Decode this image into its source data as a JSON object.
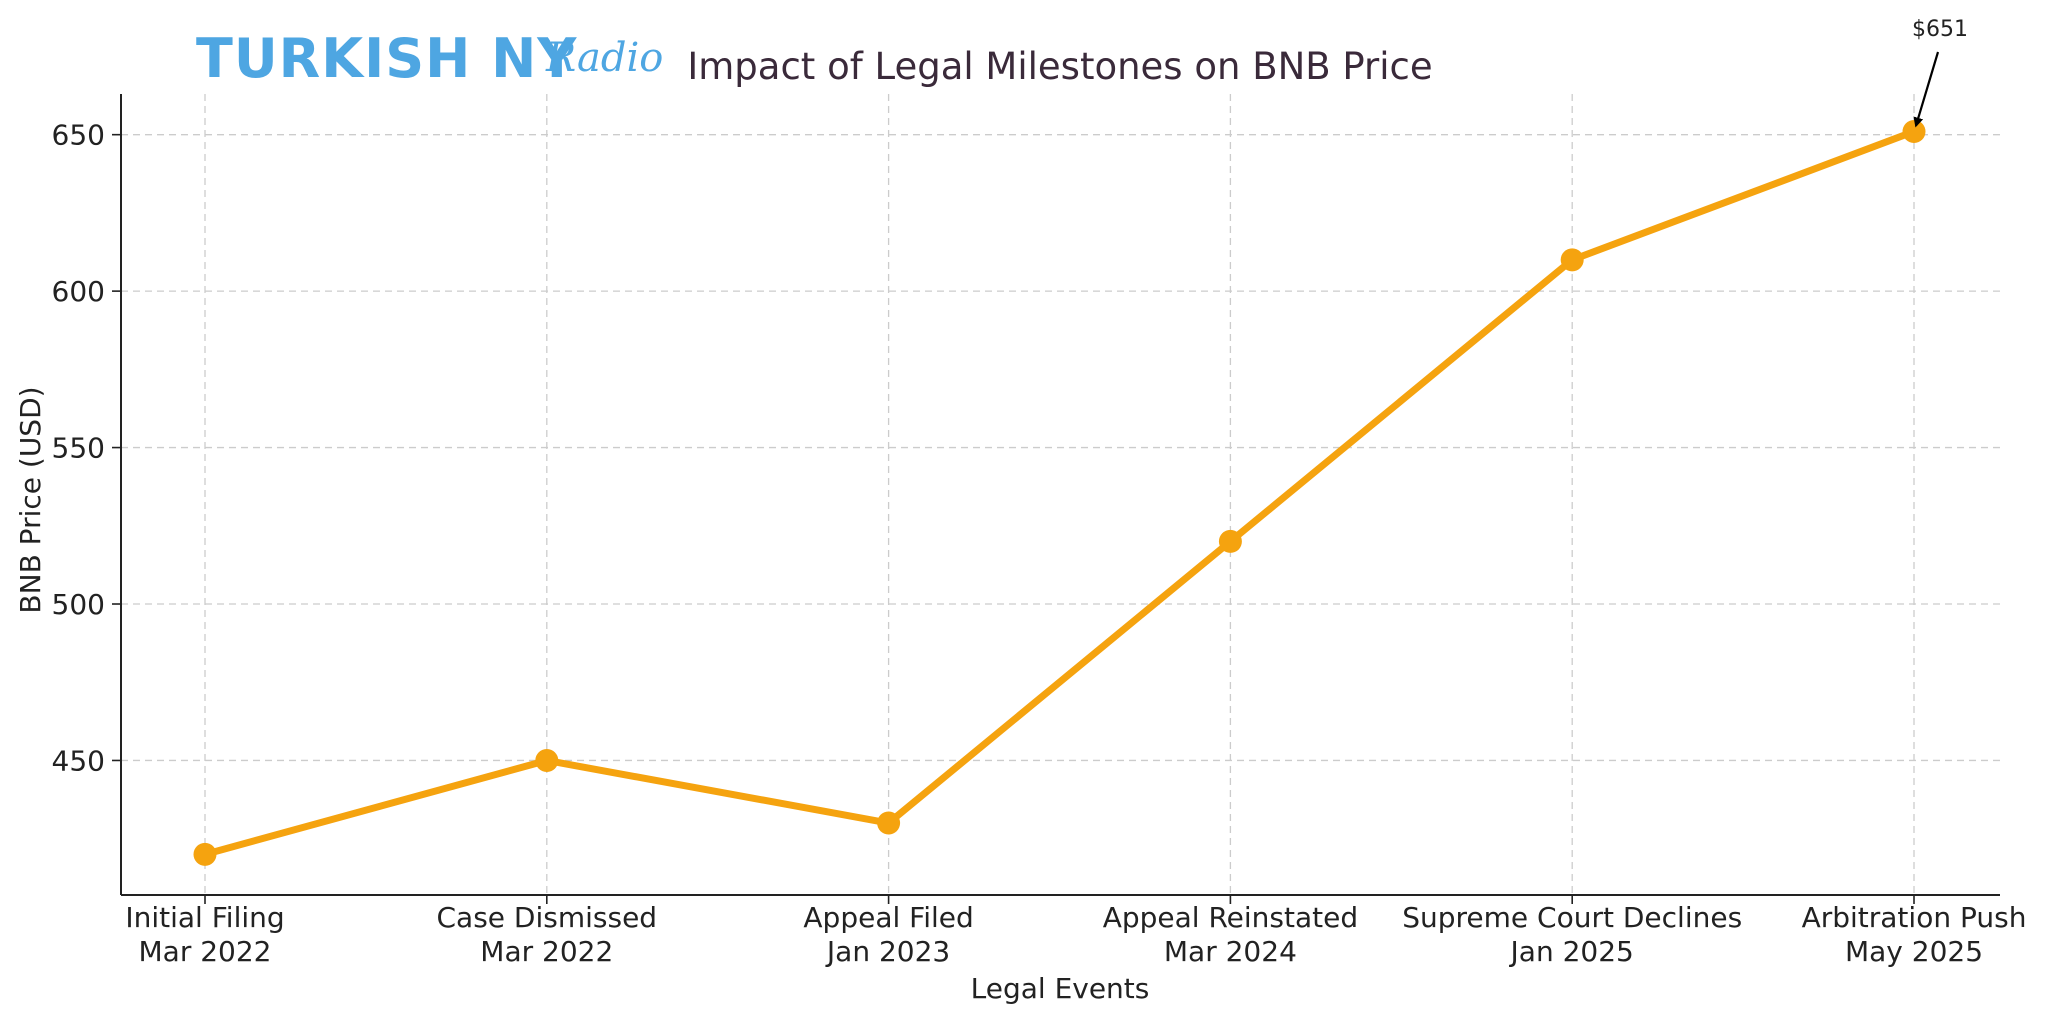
{
  "logo": {
    "main": "TURKISH NY",
    "script": "Radio"
  },
  "chart_data": {
    "type": "line",
    "title": "Impact of Legal Milestones on BNB Price",
    "xlabel": "Legal Events",
    "ylabel": "BNB Price (USD)",
    "categories": [
      [
        "Initial Filing",
        "Mar 2022"
      ],
      [
        "Case Dismissed",
        "Mar 2022"
      ],
      [
        "Appeal Filed",
        "Jan 2023"
      ],
      [
        "Appeal Reinstated",
        "Mar 2024"
      ],
      [
        "Supreme Court Declines",
        "Jan 2025"
      ],
      [
        "Arbitration Push",
        "May 2025"
      ]
    ],
    "values": [
      420,
      450,
      430,
      520,
      610,
      651
    ],
    "ylim": [
      407,
      663
    ],
    "yticks": [
      450,
      500,
      550,
      600,
      650
    ],
    "grid": true,
    "line_color": "#f5a30f",
    "annotation": {
      "text": "$651",
      "point_index": 5
    }
  }
}
